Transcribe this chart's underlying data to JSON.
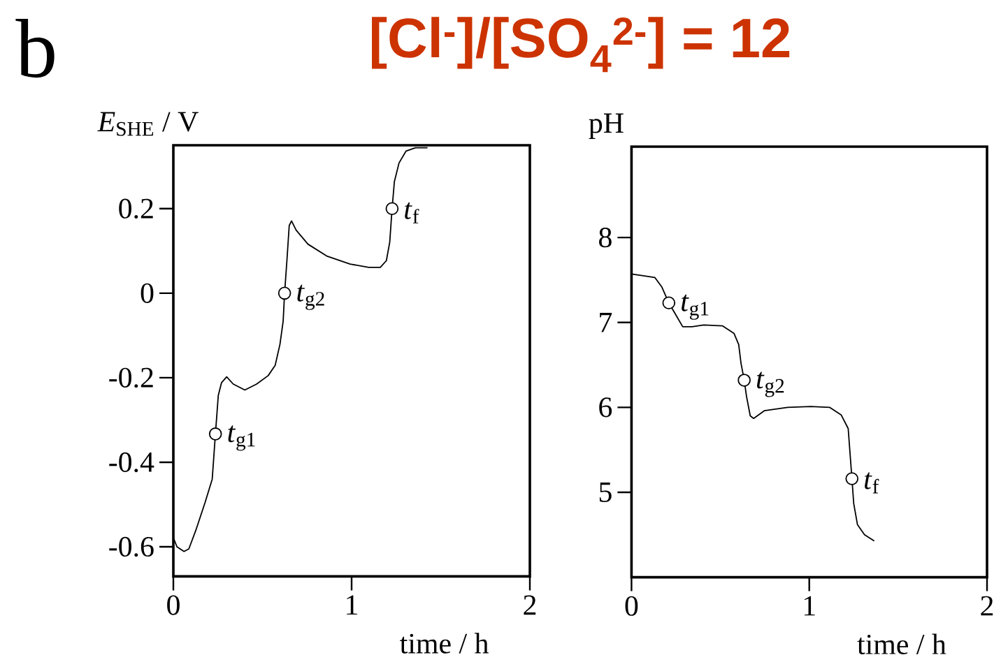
{
  "chart_data": [
    {
      "type": "line",
      "title": "[Cl$^{-}$]/[SO$_{4}$$^{2-}$] = 12",
      "xlabel": "time / h",
      "ylabel": "*E*$_{SHE}$ / V",
      "annotations": [
        "b",
        {
          "text": "*t*$_{g1}$",
          "x": 0.236,
          "y": -0.333
        },
        {
          "text": "*t*$_{g2}$",
          "x": 0.624,
          "y": 0
        },
        {
          "text": "*t*$_{f}$",
          "x": 1.227,
          "y": 0.2
        }
      ],
      "xlim": [
        0,
        2
      ],
      "ylim": [
        -0.67,
        0.35
      ],
      "xticks": [
        0,
        1,
        2
      ],
      "yticks": [
        -0.6,
        -0.4,
        -0.2,
        0,
        0.2
      ],
      "series": [
        {
          "color": "#000000",
          "x": [
            0,
            0.02,
            0.06,
            0.087,
            0.126,
            0.178,
            0.218,
            0.236,
            0.252,
            0.27,
            0.299,
            0.336,
            0.401,
            0.467,
            0.532,
            0.571,
            0.598,
            0.616,
            0.624,
            0.637,
            0.65,
            0.663,
            0.689,
            0.755,
            0.86,
            0.991,
            1.096,
            1.161,
            1.195,
            1.214,
            1.227,
            1.24,
            1.266,
            1.305,
            1.358,
            1.423
          ],
          "values": [
            -0.578,
            -0.6,
            -0.611,
            -0.605,
            -0.561,
            -0.495,
            -0.44,
            -0.333,
            -0.242,
            -0.212,
            -0.198,
            -0.215,
            -0.229,
            -0.215,
            -0.195,
            -0.171,
            -0.121,
            -0.066,
            0,
            0.077,
            0.16,
            0.171,
            0.149,
            0.116,
            0.088,
            0.069,
            0.061,
            0.061,
            0.077,
            0.121,
            0.2,
            0.264,
            0.308,
            0.336,
            0.344,
            0.344
          ]
        },
        {
          "type": "scatter",
          "color": "#000000",
          "marker": "circle",
          "x": [
            0.236,
            0.624,
            1.227
          ],
          "values": [
            -0.333,
            0,
            0.2
          ]
        }
      ]
    },
    {
      "type": "line",
      "xlabel": "time / h",
      "ylabel": "pH",
      "annotations": [
        {
          "text": "*t*$_{g1}$",
          "x": 0.21,
          "y": 7.23
        },
        {
          "text": "*t*$_{g2}$",
          "x": 0.634,
          "y": 6.32
        },
        {
          "text": "*t*$_{f}$",
          "x": 1.24,
          "y": 5.16
        }
      ],
      "xlim": [
        0,
        2
      ],
      "ylim": [
        4,
        9.07
      ],
      "xticks": [
        0,
        1,
        2
      ],
      "yticks": [
        5,
        6,
        7,
        8
      ],
      "series": [
        {
          "color": "#000000",
          "x": [
            0,
            0.066,
            0.131,
            0.17,
            0.21,
            0.249,
            0.288,
            0.341,
            0.406,
            0.511,
            0.577,
            0.603,
            0.616,
            0.634,
            0.647,
            0.668,
            0.687,
            0.747,
            0.878,
            1.009,
            1.114,
            1.18,
            1.219,
            1.229,
            1.24,
            1.25,
            1.271,
            1.311,
            1.363
          ],
          "values": [
            7.57,
            7.55,
            7.53,
            7.42,
            7.23,
            7.09,
            6.95,
            6.95,
            6.97,
            6.96,
            6.87,
            6.74,
            6.52,
            6.32,
            6.13,
            5.9,
            5.87,
            5.96,
            6.0,
            6.01,
            6.0,
            5.91,
            5.75,
            5.47,
            5.16,
            4.87,
            4.62,
            4.5,
            4.43
          ]
        },
        {
          "type": "scatter",
          "color": "#000000",
          "marker": "circle",
          "x": [
            0.21,
            0.634,
            1.24
          ],
          "values": [
            7.23,
            6.32,
            5.16
          ]
        }
      ]
    }
  ]
}
